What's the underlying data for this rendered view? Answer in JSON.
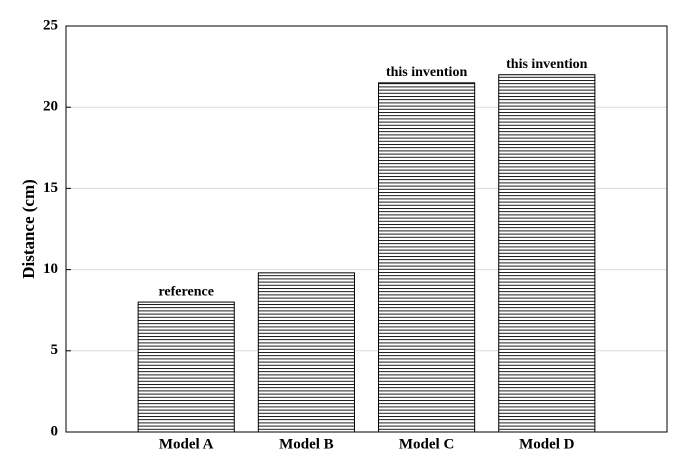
{
  "chart_data": {
    "type": "bar",
    "y_label": "Distance (cm)",
    "categories": [
      "Model A",
      "Model B",
      "Model C",
      "Model D"
    ],
    "values": [
      8,
      9.8,
      21.5,
      22
    ],
    "annotations": [
      "reference",
      null,
      "this invention",
      "this invention"
    ],
    "color": "#000000",
    "ylim": [
      0,
      25
    ],
    "yticks": [
      0,
      5,
      10,
      15,
      20,
      25
    ],
    "grid": true
  }
}
